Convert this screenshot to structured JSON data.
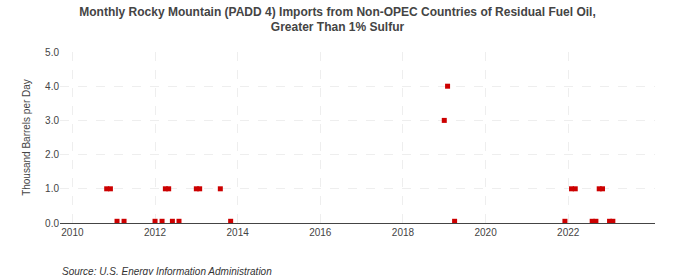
{
  "chart_data": {
    "type": "scatter",
    "title": "Monthly Rocky Mountain (PADD 4) Imports from Non-OPEC Countries of Residual Fuel Oil,\nGreater Than 1% Sulfur",
    "ylabel": "Thousand Barrels per Day",
    "annotations": [
      "Source: U.S. Energy Information Administration"
    ],
    "color": "#cc0000",
    "marker": "square",
    "grid": true,
    "xlim": [
      2009.7,
      2024.1
    ],
    "xticks": [
      2010,
      2012,
      2014,
      2016,
      2018,
      2020,
      2022
    ],
    "ylim": [
      0.0,
      5.0
    ],
    "yticks": [
      {
        "value": 0.0,
        "label": "0.0"
      },
      {
        "value": 1.0,
        "label": "1.0"
      },
      {
        "value": 2.0,
        "label": "2.0"
      },
      {
        "value": 3.0,
        "label": "3.0"
      },
      {
        "value": 4.0,
        "label": "4.0"
      },
      {
        "value": 5.0,
        "label": "5.0"
      }
    ],
    "x": [
      2010.83,
      2010.92,
      2011.08,
      2011.25,
      2012.0,
      2012.17,
      2012.25,
      2012.33,
      2012.42,
      2012.58,
      2013.0,
      2013.08,
      2013.58,
      2013.83,
      2019.0,
      2019.08,
      2019.25,
      2021.92,
      2022.08,
      2022.17,
      2022.58,
      2022.67,
      2022.75,
      2022.83,
      2023.0,
      2023.08
    ],
    "values": [
      1.0,
      1.0,
      0.05,
      0.05,
      0.05,
      0.05,
      1.0,
      1.0,
      0.05,
      0.05,
      1.0,
      1.0,
      1.0,
      0.05,
      3.0,
      4.0,
      0.05,
      0.05,
      1.0,
      1.0,
      0.05,
      0.05,
      1.0,
      1.0,
      0.05,
      0.05
    ]
  }
}
